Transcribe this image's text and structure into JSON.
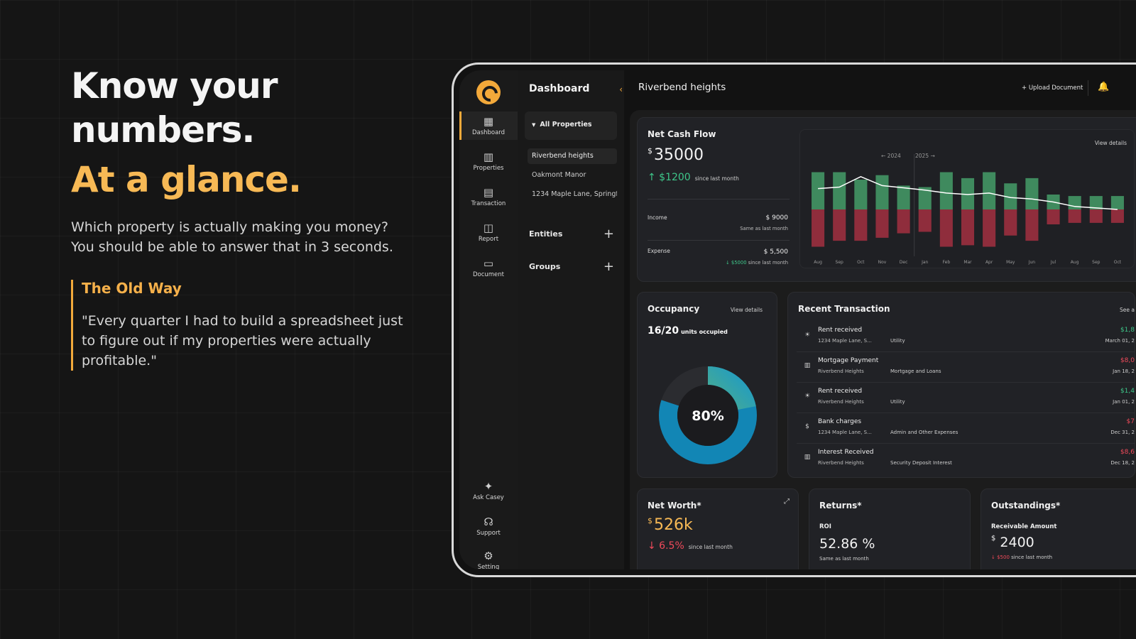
{
  "hero": {
    "title": "Know your numbers.",
    "accent": "At a glance.",
    "subtitle": "Which property is actually making you money? You should be able to answer that in 3 seconds.",
    "quote_title": "The Old Way",
    "quote_text": "\"Every quarter I had to build a spreadsheet just to figure out if my properties were actually profitable.\""
  },
  "rail": {
    "items": [
      {
        "label": "Dashboard",
        "icon": "grid-icon"
      },
      {
        "label": "Properties",
        "icon": "building-icon"
      },
      {
        "label": "Transaction",
        "icon": "receipt-icon"
      },
      {
        "label": "Report",
        "icon": "report-icon"
      },
      {
        "label": "Document",
        "icon": "folder-icon"
      },
      {
        "label": "Ask Casey",
        "icon": "sparkle-icon"
      },
      {
        "label": "Support",
        "icon": "headset-icon"
      },
      {
        "label": "Setting",
        "icon": "gear-icon"
      }
    ]
  },
  "subnav": {
    "title": "Dashboard",
    "all_properties": "All Properties",
    "properties": [
      "Riverbend heights",
      "Oakmont Manor",
      "1234 Maple Lane, Springfi..."
    ],
    "entities": "Entities",
    "groups": "Groups"
  },
  "topbar": {
    "title": "Riverbend heights",
    "upload": "+ Upload Document"
  },
  "cashflow": {
    "title": "Net Cash Flow",
    "currency": "$",
    "value": "35000",
    "delta": "↑ $1200",
    "delta_note": "since last month",
    "income_label": "Income",
    "income_value": "$ 9000",
    "income_note": "Same as last month",
    "expense_label": "Expense",
    "expense_value": "$ 5,500",
    "expense_note_amount": "↓ $5000",
    "expense_note": "since last month",
    "view_details": "View details",
    "year_prev": "← 2024",
    "year_next": "2025 →"
  },
  "chart_data": {
    "type": "bar",
    "categories": [
      "Aug",
      "Sep",
      "Oct",
      "Nov",
      "Dec",
      "Jan",
      "Feb",
      "Mar",
      "Apr",
      "May",
      "Jun",
      "Jul",
      "Aug",
      "Sep",
      "Oct"
    ],
    "series": [
      {
        "values": [
          50,
          50,
          40,
          46,
          32,
          30,
          50,
          42,
          50,
          35,
          42,
          20,
          18,
          18,
          18
        ]
      },
      {
        "values": [
          -50,
          -42,
          -42,
          -38,
          -32,
          -30,
          -50,
          -48,
          -50,
          -35,
          -42,
          -20,
          -18,
          -18,
          -18
        ]
      },
      {
        "values": [
          28,
          30,
          44,
          32,
          29,
          26,
          22,
          20,
          22,
          16,
          14,
          10,
          4,
          2,
          0
        ]
      }
    ],
    "colors": {
      "income": "#3f8a5e",
      "expense": "#8f2d3c",
      "line": "#ffffff"
    }
  },
  "occupancy": {
    "title": "Occupancy",
    "view_details": "View details",
    "units": "16/20",
    "units_label": "units occupied",
    "percent_label": "80%",
    "percent": 80
  },
  "transactions": {
    "title": "Recent Transaction",
    "see_all": "See a",
    "items": [
      {
        "title": "Rent received",
        "property": "1234 Maple Lane, S...",
        "category": "Utility",
        "amount": "$1,8",
        "date": "March 01, 2",
        "type": "in",
        "icon": "bulb-icon"
      },
      {
        "title": "Mortgage Payment",
        "property": "Riverbend Heights",
        "category": "Mortgage and Loans",
        "amount": "$8,0",
        "date": "Jan 18, 2",
        "type": "out",
        "icon": "bank-icon"
      },
      {
        "title": "Rent received",
        "property": "Riverbend Heights",
        "category": "Utility",
        "amount": "$1,4",
        "date": "Jan 01, 2",
        "type": "in",
        "icon": "bulb-icon"
      },
      {
        "title": "Bank charges",
        "property": "1234 Maple Lane, S...",
        "category": "Admin and Other Expenses",
        "amount": "$7",
        "date": "Dec 31, 2",
        "type": "out",
        "icon": "coins-icon"
      },
      {
        "title": "Interest Received",
        "property": "Riverbend Heights",
        "category": "Security Deposit Interest",
        "amount": "$8,6",
        "date": "Dec 18, 2",
        "type": "out",
        "icon": "bank-icon"
      }
    ]
  },
  "networth": {
    "title": "Net Worth*",
    "currency": "$",
    "value": "526k",
    "delta": "↓ 6.5%",
    "note": "since last month"
  },
  "returns": {
    "title": "Returns*",
    "label": "ROI",
    "value": "52.86 %",
    "note": "Same as last month"
  },
  "outstandings": {
    "title": "Outstandings*",
    "label": "Receivable Amount",
    "currency": "$",
    "value": "2400",
    "delta": "↓ $500",
    "note": "since last month"
  }
}
